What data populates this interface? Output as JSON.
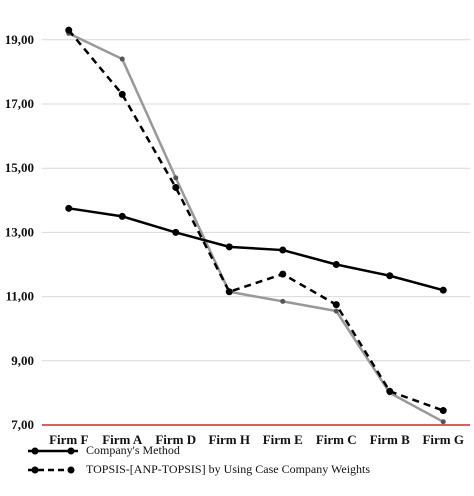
{
  "chart_data": {
    "type": "line",
    "categories": [
      "Firm F",
      "Firm A",
      "Firm D",
      "Firm H",
      "Firm E",
      "Firm C",
      "Firm B",
      "Firm G"
    ],
    "ylim": [
      7,
      19.5
    ],
    "yticks": [
      "7,00",
      "9,00",
      "11,00",
      "13,00",
      "15,00",
      "17,00",
      "19,00"
    ],
    "ytick_values": [
      7,
      9,
      11,
      13,
      15,
      17,
      19
    ],
    "grid": true,
    "legend_position": "bottom",
    "series": [
      {
        "name": "Company's Method",
        "style": "solid",
        "color": "#000000",
        "values": [
          13.75,
          13.5,
          13.0,
          12.55,
          12.45,
          12.0,
          11.65,
          11.2
        ]
      },
      {
        "name": "TOPSIS-[ANP-TOPSIS] by Using Case Company Weights",
        "style": "dashed",
        "color": "#000000",
        "values": [
          19.3,
          17.3,
          14.4,
          11.15,
          11.7,
          10.75,
          8.05,
          7.45
        ]
      },
      {
        "name": "",
        "style": "solid",
        "color": "#999999",
        "values": [
          19.2,
          18.4,
          14.7,
          11.15,
          10.85,
          10.55,
          8.0,
          7.1
        ]
      }
    ]
  }
}
